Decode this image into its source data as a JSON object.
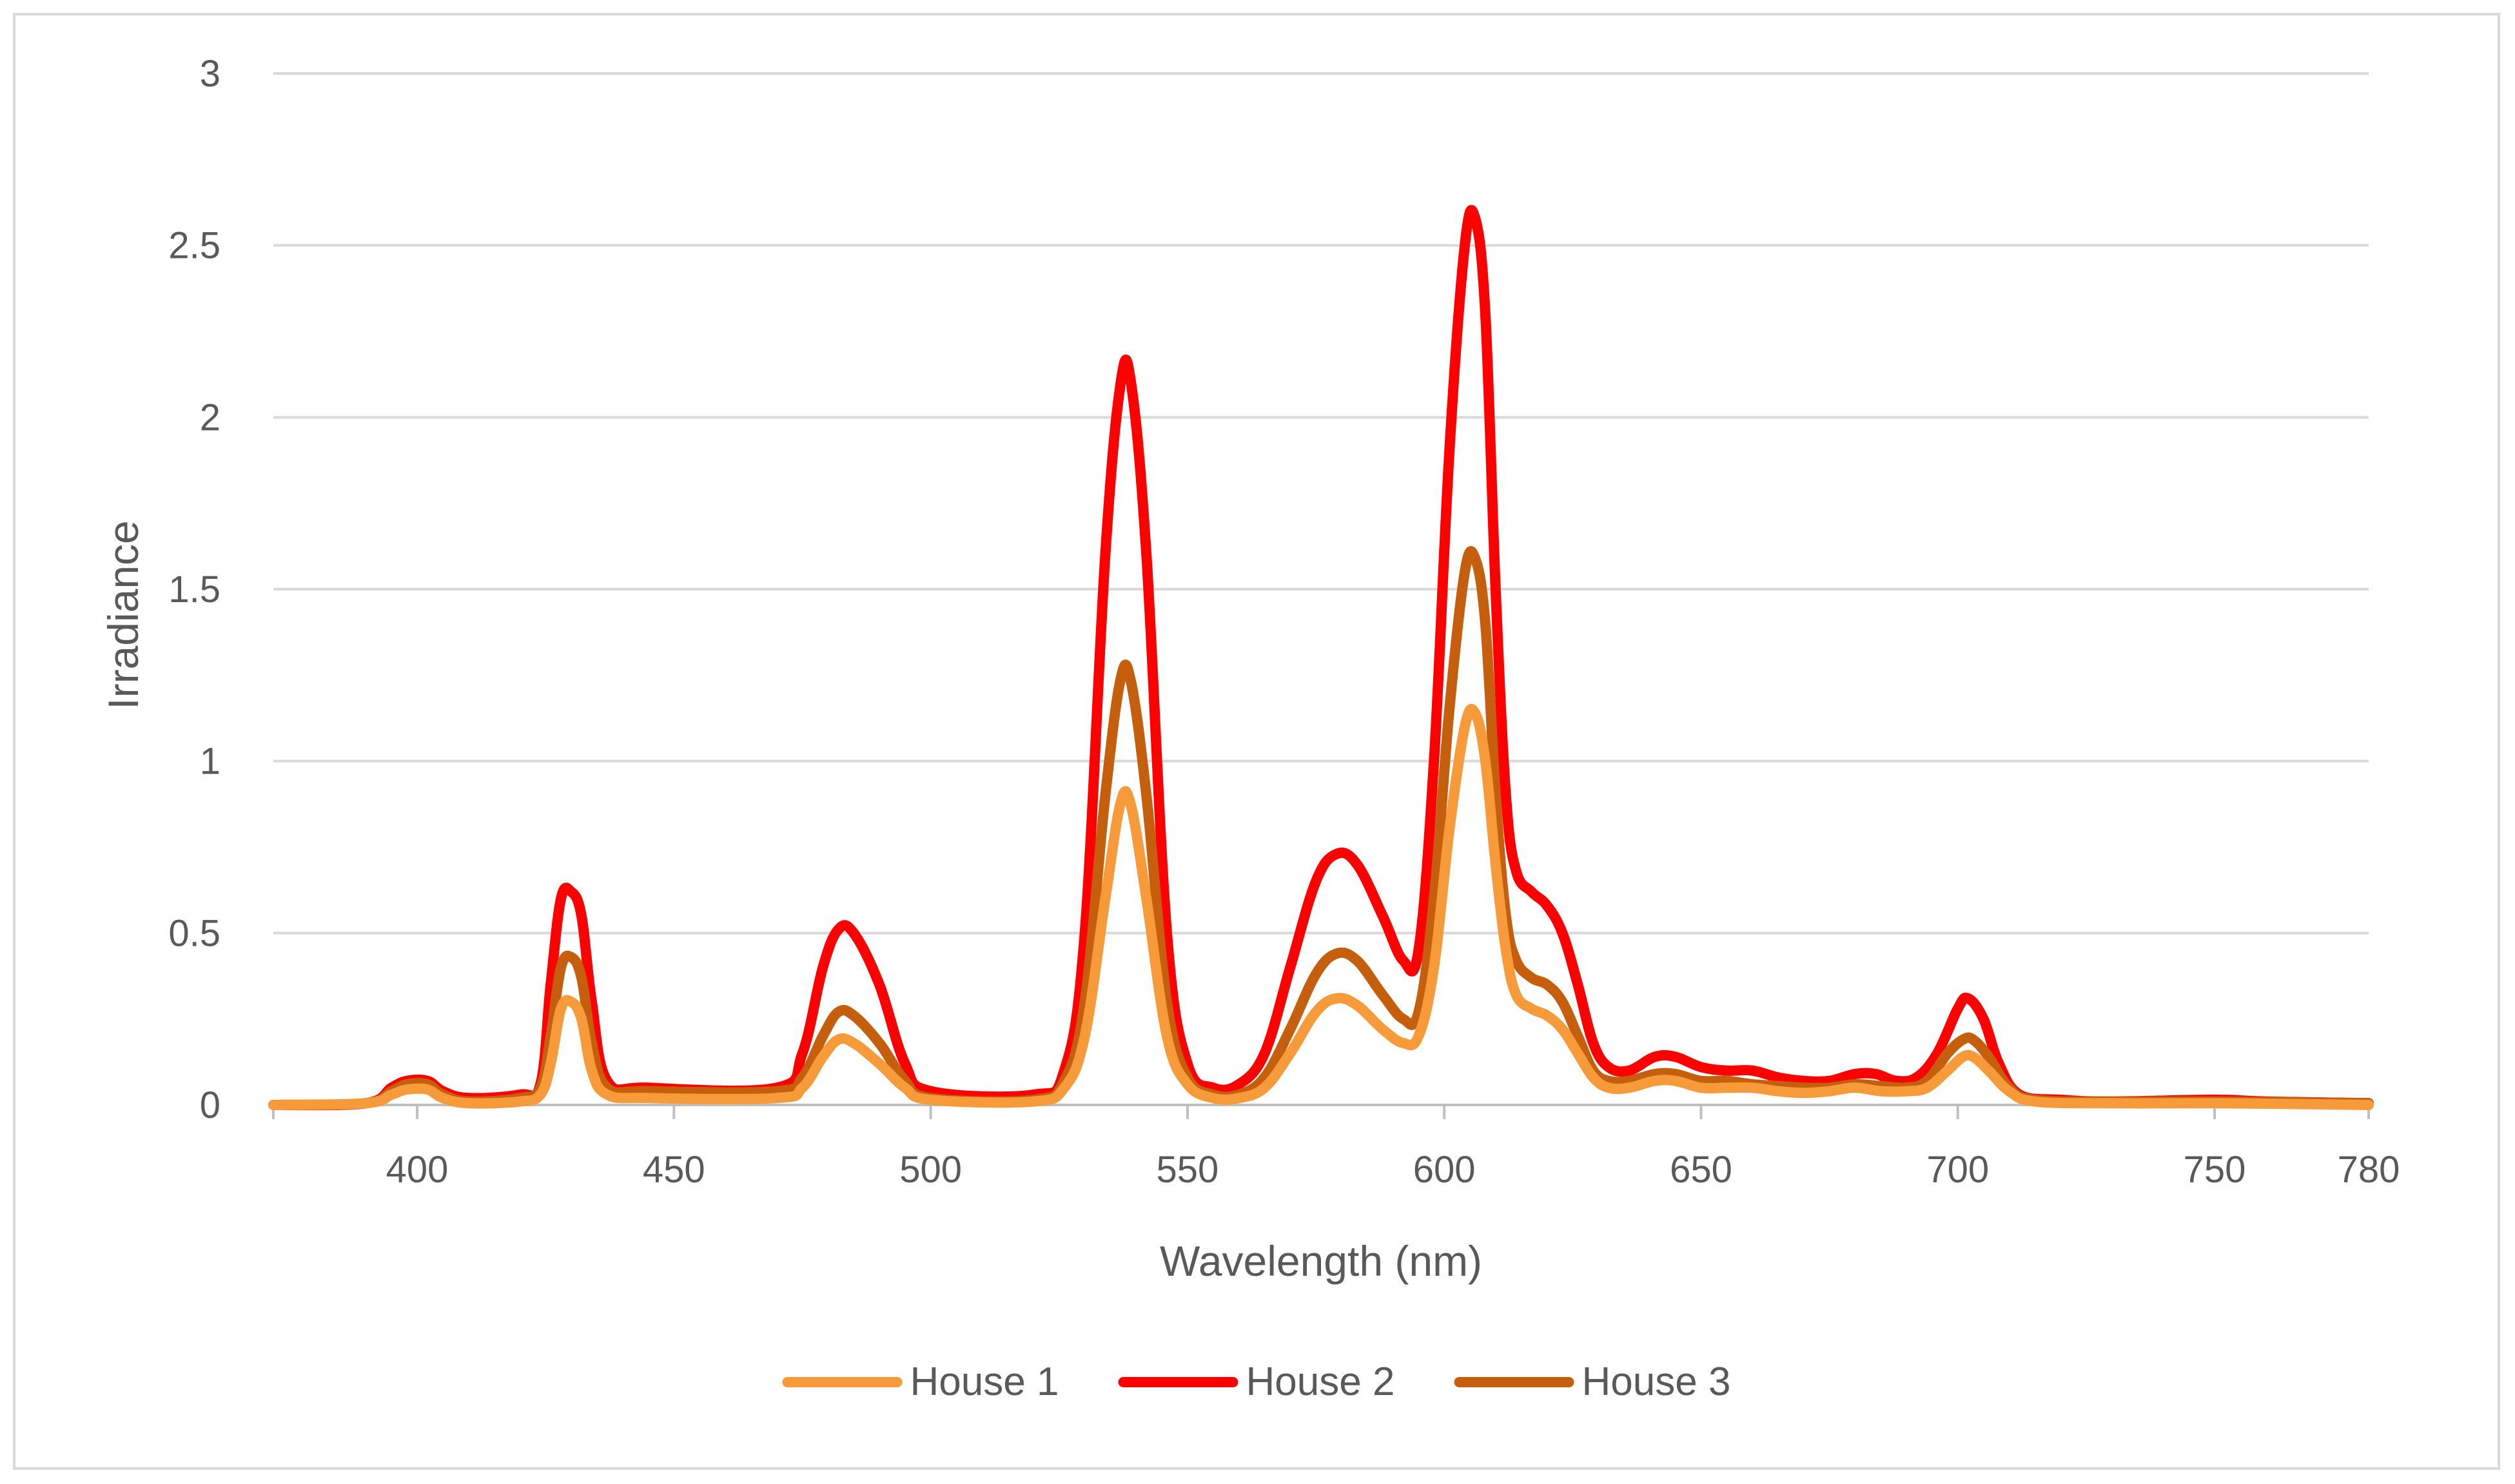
{
  "chart_data": {
    "type": "line",
    "title": "",
    "xlabel": "Wavelength (nm)",
    "ylabel": "Irradiance",
    "xlim": [
      372,
      780
    ],
    "ylim": [
      0,
      3
    ],
    "x_ticks": [
      400,
      450,
      500,
      550,
      600,
      650,
      700,
      750,
      780
    ],
    "y_ticks": [
      0,
      0.5,
      1,
      1.5,
      2,
      2.5,
      3
    ],
    "y_tick_labels": [
      "0",
      "0.5",
      "1",
      "1.5",
      "2",
      "2.5",
      "3"
    ],
    "grid": {
      "horizontal": true,
      "vertical": false
    },
    "legend": {
      "position": "bottom"
    },
    "series": [
      {
        "name": "House 1",
        "color": "#f79a3a",
        "points": [
          [
            372,
            0
          ],
          [
            390,
            0.005
          ],
          [
            395,
            0.03
          ],
          [
            398,
            0.045
          ],
          [
            402,
            0.045
          ],
          [
            405,
            0.02
          ],
          [
            410,
            0.005
          ],
          [
            420,
            0.01
          ],
          [
            424,
            0.03
          ],
          [
            426,
            0.12
          ],
          [
            428,
            0.28
          ],
          [
            430,
            0.3
          ],
          [
            432,
            0.25
          ],
          [
            434,
            0.1
          ],
          [
            437,
            0.03
          ],
          [
            445,
            0.02
          ],
          [
            470,
            0.02
          ],
          [
            475,
            0.05
          ],
          [
            479,
            0.14
          ],
          [
            482,
            0.19
          ],
          [
            485,
            0.18
          ],
          [
            490,
            0.12
          ],
          [
            495,
            0.05
          ],
          [
            500,
            0.015
          ],
          [
            520,
            0.01
          ],
          [
            526,
            0.05
          ],
          [
            530,
            0.2
          ],
          [
            534,
            0.6
          ],
          [
            537,
            0.88
          ],
          [
            539,
            0.87
          ],
          [
            542,
            0.6
          ],
          [
            546,
            0.2
          ],
          [
            550,
            0.06
          ],
          [
            555,
            0.02
          ],
          [
            560,
            0.02
          ],
          [
            565,
            0.05
          ],
          [
            570,
            0.15
          ],
          [
            575,
            0.27
          ],
          [
            579,
            0.31
          ],
          [
            583,
            0.29
          ],
          [
            588,
            0.22
          ],
          [
            592,
            0.18
          ],
          [
            595,
            0.2
          ],
          [
            598,
            0.4
          ],
          [
            601,
            0.8
          ],
          [
            604,
            1.1
          ],
          [
            606,
            1.14
          ],
          [
            608,
            1.0
          ],
          [
            610,
            0.7
          ],
          [
            612,
            0.45
          ],
          [
            614,
            0.32
          ],
          [
            617,
            0.28
          ],
          [
            620,
            0.26
          ],
          [
            623,
            0.22
          ],
          [
            626,
            0.15
          ],
          [
            629,
            0.08
          ],
          [
            632,
            0.05
          ],
          [
            636,
            0.05
          ],
          [
            641,
            0.07
          ],
          [
            645,
            0.07
          ],
          [
            650,
            0.05
          ],
          [
            655,
            0.05
          ],
          [
            660,
            0.05
          ],
          [
            665,
            0.04
          ],
          [
            670,
            0.035
          ],
          [
            675,
            0.04
          ],
          [
            680,
            0.05
          ],
          [
            685,
            0.04
          ],
          [
            690,
            0.04
          ],
          [
            694,
            0.05
          ],
          [
            698,
            0.1
          ],
          [
            701,
            0.14
          ],
          [
            703,
            0.14
          ],
          [
            706,
            0.1
          ],
          [
            710,
            0.04
          ],
          [
            715,
            0.01
          ],
          [
            730,
            0.005
          ],
          [
            750,
            0.005
          ],
          [
            780,
            0
          ]
        ]
      },
      {
        "name": "House 2",
        "color": "#ff0000",
        "points": [
          [
            372,
            0
          ],
          [
            390,
            0.005
          ],
          [
            395,
            0.05
          ],
          [
            398,
            0.07
          ],
          [
            402,
            0.07
          ],
          [
            405,
            0.04
          ],
          [
            410,
            0.02
          ],
          [
            420,
            0.03
          ],
          [
            424,
            0.06
          ],
          [
            426,
            0.35
          ],
          [
            428,
            0.6
          ],
          [
            430,
            0.62
          ],
          [
            432,
            0.55
          ],
          [
            434,
            0.3
          ],
          [
            437,
            0.07
          ],
          [
            445,
            0.05
          ],
          [
            470,
            0.05
          ],
          [
            475,
            0.15
          ],
          [
            479,
            0.4
          ],
          [
            482,
            0.51
          ],
          [
            485,
            0.5
          ],
          [
            490,
            0.35
          ],
          [
            495,
            0.12
          ],
          [
            500,
            0.04
          ],
          [
            520,
            0.03
          ],
          [
            526,
            0.1
          ],
          [
            530,
            0.5
          ],
          [
            534,
            1.6
          ],
          [
            537,
            2.1
          ],
          [
            539,
            2.1
          ],
          [
            542,
            1.6
          ],
          [
            546,
            0.5
          ],
          [
            550,
            0.12
          ],
          [
            555,
            0.05
          ],
          [
            560,
            0.06
          ],
          [
            565,
            0.15
          ],
          [
            570,
            0.4
          ],
          [
            575,
            0.65
          ],
          [
            579,
            0.73
          ],
          [
            583,
            0.7
          ],
          [
            588,
            0.55
          ],
          [
            592,
            0.42
          ],
          [
            595,
            0.45
          ],
          [
            598,
            1.0
          ],
          [
            601,
            1.9
          ],
          [
            604,
            2.5
          ],
          [
            606,
            2.58
          ],
          [
            608,
            2.3
          ],
          [
            610,
            1.5
          ],
          [
            612,
            0.9
          ],
          [
            614,
            0.68
          ],
          [
            617,
            0.62
          ],
          [
            620,
            0.58
          ],
          [
            623,
            0.5
          ],
          [
            626,
            0.35
          ],
          [
            629,
            0.18
          ],
          [
            632,
            0.11
          ],
          [
            636,
            0.1
          ],
          [
            641,
            0.14
          ],
          [
            645,
            0.14
          ],
          [
            650,
            0.11
          ],
          [
            655,
            0.1
          ],
          [
            660,
            0.1
          ],
          [
            665,
            0.08
          ],
          [
            670,
            0.07
          ],
          [
            675,
            0.07
          ],
          [
            680,
            0.09
          ],
          [
            684,
            0.09
          ],
          [
            688,
            0.07
          ],
          [
            692,
            0.08
          ],
          [
            696,
            0.15
          ],
          [
            700,
            0.28
          ],
          [
            702,
            0.31
          ],
          [
            705,
            0.25
          ],
          [
            708,
            0.12
          ],
          [
            712,
            0.03
          ],
          [
            720,
            0.015
          ],
          [
            730,
            0.01
          ],
          [
            750,
            0.015
          ],
          [
            760,
            0.01
          ],
          [
            780,
            0.005
          ]
        ]
      },
      {
        "name": "House 3",
        "color": "#c65f0d",
        "points": [
          [
            372,
            0
          ],
          [
            390,
            0.005
          ],
          [
            395,
            0.04
          ],
          [
            398,
            0.06
          ],
          [
            402,
            0.06
          ],
          [
            405,
            0.03
          ],
          [
            410,
            0.01
          ],
          [
            420,
            0.02
          ],
          [
            424,
            0.05
          ],
          [
            426,
            0.2
          ],
          [
            428,
            0.4
          ],
          [
            430,
            0.43
          ],
          [
            432,
            0.37
          ],
          [
            434,
            0.18
          ],
          [
            437,
            0.05
          ],
          [
            445,
            0.04
          ],
          [
            470,
            0.04
          ],
          [
            475,
            0.08
          ],
          [
            479,
            0.2
          ],
          [
            482,
            0.27
          ],
          [
            485,
            0.26
          ],
          [
            490,
            0.18
          ],
          [
            495,
            0.07
          ],
          [
            500,
            0.02
          ],
          [
            520,
            0.015
          ],
          [
            526,
            0.07
          ],
          [
            530,
            0.3
          ],
          [
            534,
            0.9
          ],
          [
            537,
            1.24
          ],
          [
            539,
            1.23
          ],
          [
            542,
            0.9
          ],
          [
            546,
            0.3
          ],
          [
            550,
            0.08
          ],
          [
            555,
            0.03
          ],
          [
            560,
            0.03
          ],
          [
            565,
            0.08
          ],
          [
            570,
            0.22
          ],
          [
            575,
            0.38
          ],
          [
            579,
            0.44
          ],
          [
            583,
            0.42
          ],
          [
            588,
            0.32
          ],
          [
            592,
            0.25
          ],
          [
            595,
            0.27
          ],
          [
            598,
            0.6
          ],
          [
            601,
            1.15
          ],
          [
            604,
            1.55
          ],
          [
            606,
            1.59
          ],
          [
            608,
            1.4
          ],
          [
            610,
            0.9
          ],
          [
            612,
            0.55
          ],
          [
            614,
            0.42
          ],
          [
            617,
            0.37
          ],
          [
            620,
            0.35
          ],
          [
            623,
            0.3
          ],
          [
            626,
            0.2
          ],
          [
            629,
            0.1
          ],
          [
            632,
            0.07
          ],
          [
            636,
            0.07
          ],
          [
            641,
            0.09
          ],
          [
            645,
            0.09
          ],
          [
            650,
            0.07
          ],
          [
            655,
            0.07
          ],
          [
            660,
            0.06
          ],
          [
            665,
            0.055
          ],
          [
            670,
            0.05
          ],
          [
            675,
            0.05
          ],
          [
            680,
            0.06
          ],
          [
            685,
            0.055
          ],
          [
            690,
            0.05
          ],
          [
            694,
            0.07
          ],
          [
            698,
            0.15
          ],
          [
            701,
            0.19
          ],
          [
            703,
            0.19
          ],
          [
            706,
            0.14
          ],
          [
            710,
            0.05
          ],
          [
            715,
            0.015
          ],
          [
            730,
            0.01
          ],
          [
            750,
            0.01
          ],
          [
            780,
            0.005
          ]
        ]
      }
    ]
  }
}
